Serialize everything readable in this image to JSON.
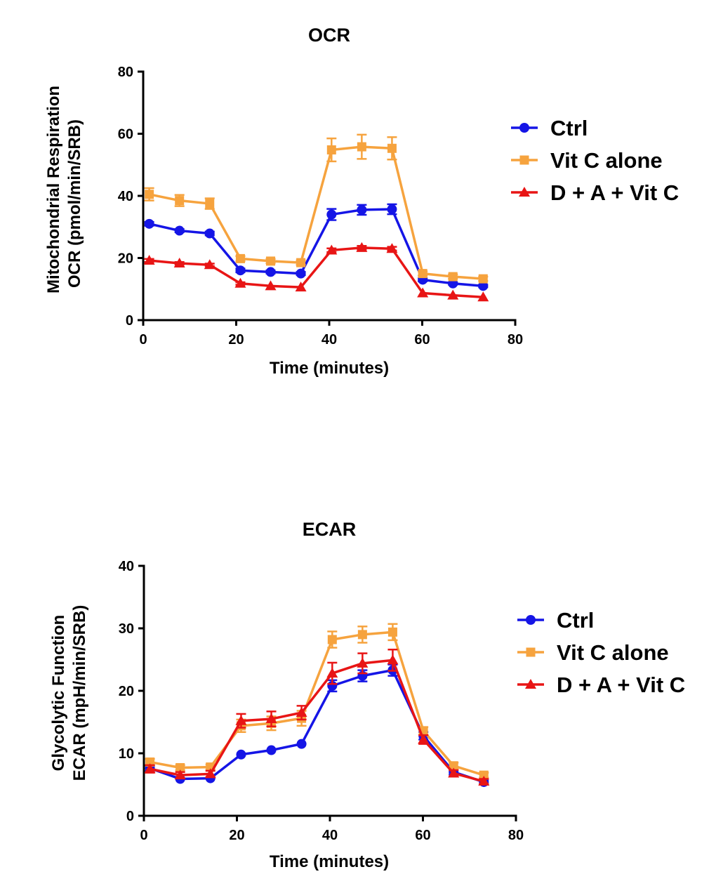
{
  "chart_data": [
    {
      "type": "line",
      "title": "OCR",
      "xlabel": "Time (minutes)",
      "ylabel_lines": [
        "Mitochondrial Respiration",
        "OCR (pmol/min/SRB)"
      ],
      "xlim": [
        0,
        80
      ],
      "ylim": [
        0,
        80
      ],
      "xticks": [
        0,
        20,
        40,
        60,
        80
      ],
      "yticks": [
        0,
        20,
        40,
        60,
        80
      ],
      "x": [
        1.3,
        7.8,
        14.3,
        20.9,
        27.4,
        33.9,
        40.5,
        47.0,
        53.5,
        60.1,
        66.6,
        73.1
      ],
      "series": [
        {
          "name": "Ctrl",
          "color": "#1515e6",
          "marker": "circle",
          "values": [
            31.0,
            28.8,
            27.9,
            16.0,
            15.5,
            15.0,
            34.0,
            35.5,
            35.7,
            13.0,
            11.8,
            11.0
          ],
          "errors": [
            0.6,
            0.5,
            0.6,
            0.6,
            0.5,
            0.5,
            1.8,
            1.6,
            1.6,
            0.5,
            0.4,
            0.4
          ]
        },
        {
          "name": "Vit C alone",
          "color": "#f6a33e",
          "marker": "square",
          "values": [
            40.5,
            38.5,
            37.5,
            19.8,
            19.0,
            18.5,
            54.8,
            55.8,
            55.3,
            15.0,
            14.0,
            13.3
          ],
          "errors": [
            2.0,
            1.8,
            1.7,
            0.8,
            0.7,
            0.7,
            3.7,
            3.9,
            3.6,
            0.7,
            0.7,
            0.7
          ]
        },
        {
          "name": "D + A + Vit C",
          "color": "#e81515",
          "marker": "triangle",
          "values": [
            19.2,
            18.3,
            17.8,
            11.8,
            11.0,
            10.6,
            22.5,
            23.3,
            23.0,
            8.7,
            8.0,
            7.4
          ],
          "errors": [
            0.5,
            0.4,
            0.4,
            0.4,
            0.3,
            0.3,
            0.6,
            0.6,
            0.6,
            0.3,
            0.3,
            0.3
          ]
        }
      ],
      "legend": "right"
    },
    {
      "type": "line",
      "title": "ECAR",
      "xlabel": "Time (minutes)",
      "ylabel_lines": [
        "Glycolytic Function",
        "ECAR (mpH/min/SRB)"
      ],
      "xlim": [
        0,
        80
      ],
      "ylim": [
        0,
        40
      ],
      "xticks": [
        0,
        20,
        40,
        60,
        80
      ],
      "yticks": [
        0,
        10,
        20,
        30,
        40
      ],
      "x": [
        1.3,
        7.8,
        14.3,
        20.9,
        27.4,
        33.9,
        40.5,
        47.0,
        53.5,
        60.1,
        66.6,
        73.1
      ],
      "series": [
        {
          "name": "Ctrl",
          "color": "#1515e6",
          "marker": "circle",
          "values": [
            7.6,
            5.9,
            6.0,
            9.8,
            10.5,
            11.5,
            20.8,
            22.4,
            23.3,
            12.8,
            7.0,
            5.4
          ],
          "errors": [
            0.4,
            0.3,
            0.3,
            0.3,
            0.3,
            0.3,
            0.9,
            0.9,
            0.9,
            0.6,
            0.4,
            0.4
          ]
        },
        {
          "name": "Vit C alone",
          "color": "#f6a33e",
          "marker": "square",
          "values": [
            8.6,
            7.7,
            7.8,
            14.4,
            14.8,
            15.6,
            28.2,
            29.0,
            29.4,
            13.6,
            8.0,
            6.5
          ],
          "errors": [
            0.5,
            0.4,
            0.4,
            1.0,
            1.1,
            1.2,
            1.3,
            1.3,
            1.3,
            0.6,
            0.5,
            0.4
          ]
        },
        {
          "name": "D + A + Vit C",
          "color": "#e81515",
          "marker": "triangle",
          "values": [
            7.5,
            6.5,
            6.7,
            15.2,
            15.5,
            16.5,
            22.8,
            24.4,
            24.9,
            12.2,
            6.8,
            5.5
          ],
          "errors": [
            0.6,
            0.5,
            0.5,
            1.1,
            1.2,
            1.1,
            1.7,
            1.6,
            1.7,
            0.7,
            0.5,
            0.4
          ]
        }
      ],
      "legend": "right"
    }
  ]
}
